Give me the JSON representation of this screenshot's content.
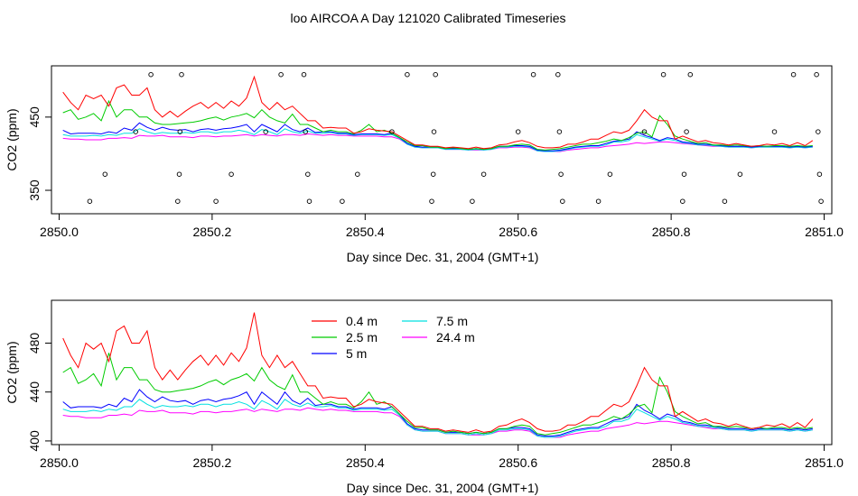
{
  "page_title": "loo AIRCOA A  Day 121020  Calibrated Timeseries",
  "chart_data": [
    {
      "type": "scatter+line",
      "xlabel": "Day since Dec. 31, 2004 (GMT+1)",
      "ylabel": "CO2 (ppm)",
      "xlim": [
        2849.99,
        2851.01
      ],
      "ylim": [
        318,
        520
      ],
      "x_ticks": [
        2850.0,
        2850.2,
        2850.4,
        2850.6,
        2850.8,
        2851.0
      ],
      "x_tick_labels": [
        "2850.0",
        "2850.2",
        "2850.4",
        "2850.6",
        "2850.8",
        "2851.0"
      ],
      "y_ticks": [
        350,
        450
      ],
      "y_tick_labels": [
        "350",
        "450"
      ],
      "calibration_points": [
        {
          "x": 2850.04,
          "y": 335
        },
        {
          "x": 2850.06,
          "y": 372
        },
        {
          "x": 2850.1,
          "y": 430
        },
        {
          "x": 2850.12,
          "y": 508
        },
        {
          "x": 2850.155,
          "y": 335
        },
        {
          "x": 2850.157,
          "y": 372
        },
        {
          "x": 2850.158,
          "y": 430
        },
        {
          "x": 2850.16,
          "y": 508
        },
        {
          "x": 2850.205,
          "y": 335
        },
        {
          "x": 2850.225,
          "y": 372
        },
        {
          "x": 2850.27,
          "y": 430
        },
        {
          "x": 2850.29,
          "y": 508
        },
        {
          "x": 2850.32,
          "y": 508
        },
        {
          "x": 2850.322,
          "y": 430
        },
        {
          "x": 2850.325,
          "y": 372
        },
        {
          "x": 2850.327,
          "y": 335
        },
        {
          "x": 2850.37,
          "y": 335
        },
        {
          "x": 2850.39,
          "y": 372
        },
        {
          "x": 2850.435,
          "y": 430
        },
        {
          "x": 2850.455,
          "y": 508
        },
        {
          "x": 2850.487,
          "y": 335
        },
        {
          "x": 2850.489,
          "y": 372
        },
        {
          "x": 2850.49,
          "y": 430
        },
        {
          "x": 2850.492,
          "y": 508
        },
        {
          "x": 2850.54,
          "y": 335
        },
        {
          "x": 2850.555,
          "y": 372
        },
        {
          "x": 2850.6,
          "y": 430
        },
        {
          "x": 2850.62,
          "y": 508
        },
        {
          "x": 2850.652,
          "y": 508
        },
        {
          "x": 2850.654,
          "y": 430
        },
        {
          "x": 2850.656,
          "y": 372
        },
        {
          "x": 2850.658,
          "y": 335
        },
        {
          "x": 2850.705,
          "y": 335
        },
        {
          "x": 2850.72,
          "y": 372
        },
        {
          "x": 2850.765,
          "y": 430
        },
        {
          "x": 2850.79,
          "y": 508
        },
        {
          "x": 2850.815,
          "y": 335
        },
        {
          "x": 2850.817,
          "y": 372
        },
        {
          "x": 2850.82,
          "y": 430
        },
        {
          "x": 2850.825,
          "y": 508
        },
        {
          "x": 2850.87,
          "y": 335
        },
        {
          "x": 2850.89,
          "y": 372
        },
        {
          "x": 2850.935,
          "y": 430
        },
        {
          "x": 2850.96,
          "y": 508
        },
        {
          "x": 2850.99,
          "y": 508
        },
        {
          "x": 2850.992,
          "y": 430
        },
        {
          "x": 2850.994,
          "y": 372
        },
        {
          "x": 2850.996,
          "y": 335
        }
      ]
    },
    {
      "type": "line",
      "xlabel": "Day since Dec. 31, 2004 (GMT+1)",
      "ylabel": "CO2 (ppm)",
      "xlim": [
        2849.99,
        2851.01
      ],
      "ylim": [
        397,
        515
      ],
      "x_ticks": [
        2850.0,
        2850.2,
        2850.4,
        2850.6,
        2850.8,
        2851.0
      ],
      "x_tick_labels": [
        "2850.0",
        "2850.2",
        "2850.4",
        "2850.6",
        "2850.8",
        "2851.0"
      ],
      "y_ticks": [
        400,
        440,
        480
      ],
      "y_tick_labels": [
        "400",
        "440",
        "480"
      ],
      "legend": {
        "placement": "top-center",
        "columns": 2
      }
    }
  ],
  "x": [
    2850.005,
    2850.015,
    2850.025,
    2850.035,
    2850.045,
    2850.055,
    2850.065,
    2850.075,
    2850.085,
    2850.095,
    2850.105,
    2850.115,
    2850.125,
    2850.135,
    2850.145,
    2850.155,
    2850.165,
    2850.175,
    2850.185,
    2850.195,
    2850.205,
    2850.215,
    2850.225,
    2850.235,
    2850.245,
    2850.255,
    2850.265,
    2850.275,
    2850.285,
    2850.295,
    2850.305,
    2850.315,
    2850.325,
    2850.335,
    2850.345,
    2850.355,
    2850.365,
    2850.375,
    2850.385,
    2850.395,
    2850.405,
    2850.415,
    2850.425,
    2850.435,
    2850.445,
    2850.455,
    2850.465,
    2850.475,
    2850.485,
    2850.495,
    2850.505,
    2850.515,
    2850.525,
    2850.535,
    2850.545,
    2850.555,
    2850.565,
    2850.575,
    2850.585,
    2850.595,
    2850.605,
    2850.615,
    2850.625,
    2850.635,
    2850.645,
    2850.655,
    2850.665,
    2850.675,
    2850.685,
    2850.695,
    2850.705,
    2850.715,
    2850.725,
    2850.735,
    2850.745,
    2850.755,
    2850.765,
    2850.775,
    2850.785,
    2850.795,
    2850.805,
    2850.815,
    2850.825,
    2850.835,
    2850.845,
    2850.855,
    2850.865,
    2850.875,
    2850.885,
    2850.895,
    2850.905,
    2850.915,
    2850.925,
    2850.935,
    2850.945,
    2850.955,
    2850.965,
    2850.975,
    2850.985
  ],
  "series": [
    {
      "name": "0.4 m",
      "color": "#ff0000",
      "values": [
        484,
        470,
        460,
        480,
        475,
        480,
        465,
        490,
        494,
        480,
        480,
        490,
        460,
        450,
        458,
        450,
        458,
        465,
        470,
        462,
        470,
        462,
        472,
        465,
        476,
        505,
        470,
        460,
        470,
        460,
        465,
        455,
        445,
        445,
        435,
        436,
        435,
        435,
        428,
        430,
        434,
        432,
        431,
        430,
        424,
        418,
        412,
        412,
        410,
        410,
        408,
        409,
        408,
        407,
        409,
        407,
        408,
        412,
        413,
        416,
        418,
        415,
        410,
        408,
        408,
        409,
        413,
        413,
        416,
        420,
        420,
        425,
        430,
        428,
        432,
        445,
        460,
        450,
        445,
        445,
        420,
        424,
        420,
        416,
        418,
        415,
        414,
        412,
        414,
        412,
        410,
        411,
        413,
        412,
        414,
        411,
        415,
        411,
        418
      ]
    },
    {
      "name": "2.5 m",
      "color": "#00cc00",
      "values": [
        456,
        460,
        447,
        450,
        455,
        445,
        472,
        450,
        460,
        460,
        450,
        450,
        442,
        440,
        440,
        441,
        442,
        443,
        445,
        448,
        450,
        446,
        450,
        452,
        455,
        449,
        460,
        450,
        445,
        442,
        454,
        440,
        440,
        435,
        430,
        432,
        430,
        430,
        427,
        432,
        440,
        430,
        432,
        428,
        422,
        416,
        411,
        411,
        409,
        409,
        407,
        408,
        407,
        406,
        407,
        406,
        407,
        410,
        410,
        412,
        413,
        412,
        406,
        405,
        406,
        407,
        409,
        411,
        413,
        413,
        415,
        417,
        420,
        418,
        422,
        428,
        430,
        423,
        452,
        440,
        424,
        420,
        417,
        414,
        415,
        412,
        412,
        411,
        412,
        411,
        410,
        411,
        410,
        411,
        411,
        410,
        411,
        410,
        411
      ]
    },
    {
      "name": "5 m",
      "color": "#0000ff",
      "values": [
        432,
        427,
        428,
        428,
        428,
        427,
        430,
        428,
        435,
        432,
        442,
        436,
        432,
        436,
        433,
        432,
        433,
        430,
        433,
        434,
        432,
        434,
        435,
        437,
        440,
        430,
        440,
        435,
        430,
        440,
        433,
        430,
        435,
        429,
        430,
        430,
        428,
        428,
        426,
        427,
        427,
        427,
        426,
        428,
        422,
        414,
        410,
        409,
        409,
        409,
        407,
        407,
        407,
        406,
        407,
        406,
        407,
        410,
        410,
        411,
        411,
        410,
        405,
        404,
        404,
        405,
        407,
        409,
        410,
        411,
        411,
        414,
        417,
        418,
        420,
        430,
        425,
        422,
        418,
        422,
        420,
        416,
        415,
        413,
        413,
        412,
        411,
        410,
        410,
        410,
        409,
        410,
        410,
        410,
        410,
        409,
        410,
        409,
        410
      ]
    },
    {
      "name": "7.5 m",
      "color": "#00e0e0",
      "values": [
        426,
        424,
        424,
        424,
        425,
        424,
        426,
        425,
        428,
        428,
        434,
        430,
        427,
        429,
        428,
        428,
        429,
        428,
        430,
        430,
        428,
        430,
        430,
        432,
        430,
        426,
        433,
        430,
        426,
        434,
        430,
        428,
        431,
        428,
        428,
        429,
        427,
        427,
        425,
        426,
        426,
        426,
        425,
        426,
        421,
        413,
        409,
        408,
        408,
        408,
        406,
        406,
        406,
        405,
        406,
        405,
        406,
        409,
        409,
        410,
        410,
        409,
        404,
        403,
        403,
        404,
        406,
        408,
        409,
        410,
        410,
        412,
        416,
        416,
        418,
        426,
        423,
        420,
        417,
        420,
        418,
        415,
        414,
        412,
        412,
        411,
        410,
        409,
        409,
        409,
        408,
        409,
        409,
        409,
        409,
        408,
        409,
        408,
        409
      ]
    },
    {
      "name": "24.4 m",
      "color": "#ff00ff",
      "values": [
        421,
        420,
        420,
        419,
        419,
        419,
        421,
        421,
        422,
        421,
        425,
        424,
        424,
        425,
        423,
        423,
        423,
        422,
        424,
        424,
        423,
        424,
        424,
        425,
        426,
        424,
        426,
        425,
        424,
        426,
        426,
        425,
        427,
        426,
        425,
        426,
        425,
        425,
        424,
        424,
        424,
        424,
        423,
        423,
        420,
        413,
        409,
        408,
        408,
        408,
        406,
        406,
        406,
        405,
        405,
        405,
        406,
        408,
        408,
        409,
        409,
        408,
        404,
        403,
        403,
        403,
        405,
        406,
        407,
        408,
        408,
        410,
        411,
        412,
        413,
        415,
        414,
        415,
        416,
        416,
        415,
        414,
        413,
        412,
        411,
        410,
        410,
        409,
        409,
        409,
        408,
        409,
        409,
        409,
        409,
        408,
        409,
        408,
        409
      ]
    }
  ]
}
